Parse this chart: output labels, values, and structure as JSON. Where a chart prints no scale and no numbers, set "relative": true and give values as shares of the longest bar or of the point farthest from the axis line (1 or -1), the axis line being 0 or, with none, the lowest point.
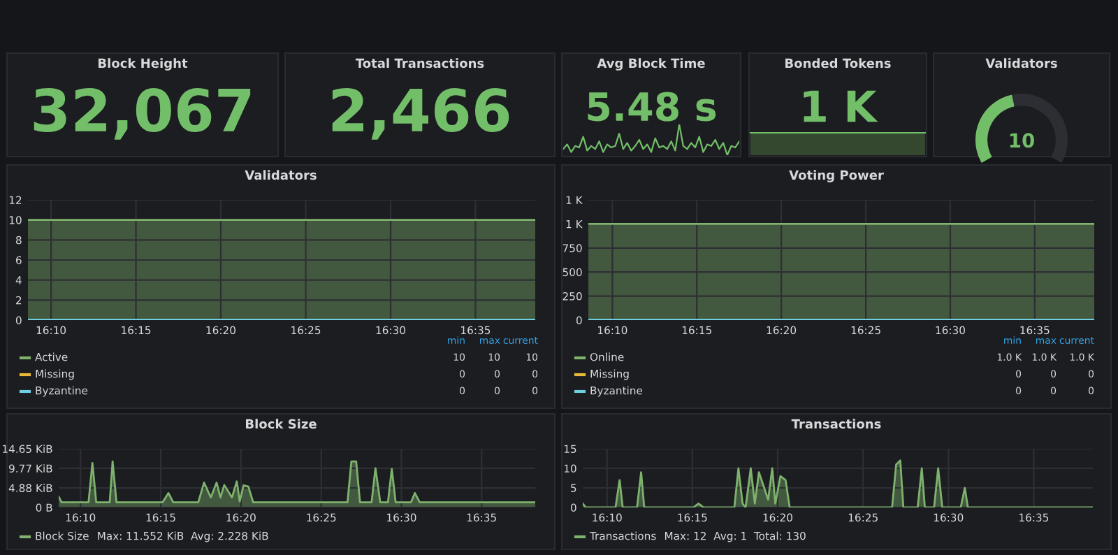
{
  "chart_data": [
    {
      "type": "other",
      "title": "Block Height",
      "annotations": [
        "32,067"
      ]
    },
    {
      "type": "other",
      "title": "Total Transactions",
      "annotations": [
        "2,466"
      ]
    },
    {
      "type": "line",
      "relative": true,
      "title": "Avg Block Time",
      "annotations": [
        "5.48 s"
      ],
      "categories": [
        null,
        null,
        null,
        null,
        null,
        null,
        null,
        null,
        null,
        null,
        null,
        null,
        null,
        null,
        null,
        null,
        null,
        null,
        null,
        null,
        null,
        null,
        null,
        null,
        null,
        null,
        null,
        null,
        null,
        null,
        null,
        null,
        null,
        null,
        null,
        null,
        null,
        null,
        null,
        null,
        null,
        null,
        null,
        null,
        null
      ],
      "series": [
        {
          "color": "#73bf69",
          "values": [
            0.2,
            0.35,
            0.1,
            0.3,
            0.25,
            0.6,
            0.15,
            0.3,
            0.2,
            0.45,
            0.1,
            0.35,
            0.25,
            0.3,
            0.7,
            0.2,
            0.4,
            0.15,
            0.3,
            0.5,
            0.2,
            0.35,
            0.1,
            0.55,
            0.25,
            0.3,
            0.2,
            0.45,
            0.15,
            1.0,
            0.3,
            0.2,
            0.4,
            0.25,
            0.6,
            0.1,
            0.35,
            0.3,
            0.5,
            0.2,
            0.4,
            0.0,
            0.3,
            0.25,
            0.45
          ]
        }
      ]
    },
    {
      "type": "other",
      "title": "Bonded Tokens",
      "annotations": [
        "1 K"
      ]
    },
    {
      "type": "donut",
      "title": "Validators",
      "categories": [
        null,
        null
      ],
      "values": [
        45,
        55
      ],
      "colors": [
        "#73bf69",
        "#2d2e33"
      ],
      "annotations": [
        "10"
      ]
    },
    {
      "type": "area",
      "title": "Validators",
      "xlim": [
        16.144,
        16.642
      ],
      "ylim": [
        0,
        12
      ],
      "grid": true,
      "legend": "bottom",
      "xticks": [
        {
          "value": 16.1667,
          "label": "16:10"
        },
        {
          "value": 16.25,
          "label": "16:15"
        },
        {
          "value": 16.3333,
          "label": "16:20"
        },
        {
          "value": 16.4167,
          "label": "16:25"
        },
        {
          "value": 16.5,
          "label": "16:30"
        },
        {
          "value": 16.5833,
          "label": "16:35"
        }
      ],
      "yticks": [
        0,
        2,
        4,
        6,
        8,
        10,
        12
      ],
      "annotations": [
        "min",
        "max",
        "current",
        "10",
        "10",
        "10",
        "0",
        "0",
        "0",
        "0",
        "0",
        "0"
      ],
      "series": [
        {
          "name": "Active",
          "color": "#7eb26d",
          "x": [
            16.144,
            16.642
          ],
          "values": [
            10,
            10
          ]
        },
        {
          "name": "Missing",
          "type": "line",
          "color": "#eab839"
        },
        {
          "name": "Byzantine",
          "type": "line",
          "color": "#6ed0e0",
          "x": [
            16.144,
            16.642
          ],
          "values": [
            0,
            0
          ]
        }
      ]
    },
    {
      "type": "area",
      "title": "Voting Power",
      "xlim": [
        16.143,
        16.642
      ],
      "ylim": [
        0,
        1250
      ],
      "grid": true,
      "legend": "bottom",
      "xticks": [
        {
          "value": 16.1667,
          "label": "16:10"
        },
        {
          "value": 16.25,
          "label": "16:15"
        },
        {
          "value": 16.3333,
          "label": "16:20"
        },
        {
          "value": 16.4167,
          "label": "16:25"
        },
        {
          "value": 16.5,
          "label": "16:30"
        },
        {
          "value": 16.5833,
          "label": "16:35"
        }
      ],
      "yticks": [
        0,
        250,
        500,
        750,
        {
          "value": 1000,
          "label": "1 K"
        },
        {
          "value": 1250,
          "label": "1 K"
        }
      ],
      "annotations": [
        "min",
        "max",
        "current",
        "1.0 K",
        "1.0 K",
        "1.0 K",
        "0",
        "0",
        "0",
        "0",
        "0",
        "0"
      ],
      "series": [
        {
          "name": "Online",
          "color": "#7eb26d",
          "x": [
            16.143,
            16.642
          ],
          "values": [
            1000,
            1000
          ]
        },
        {
          "name": "Missing",
          "type": "line",
          "color": "#eab839"
        },
        {
          "name": "Byzantine",
          "type": "line",
          "color": "#6ed0e0",
          "x": [
            16.143,
            16.642
          ],
          "values": [
            0,
            0
          ]
        }
      ]
    },
    {
      "type": "area",
      "title": "Block Size",
      "xlim": [
        16.144,
        16.639
      ],
      "ylim": [
        0,
        14.65
      ],
      "grid": true,
      "legend": "bottom",
      "xticks": [
        {
          "value": 16.1667,
          "label": "16:10"
        },
        {
          "value": 16.25,
          "label": "16:15"
        },
        {
          "value": 16.3333,
          "label": "16:20"
        },
        {
          "value": 16.4167,
          "label": "16:25"
        },
        {
          "value": 16.5,
          "label": "16:30"
        },
        {
          "value": 16.5833,
          "label": "16:35"
        }
      ],
      "yticks": [
        {
          "value": 0,
          "label": "0 B"
        },
        {
          "value": 4.88,
          "label": "4.88 KiB"
        },
        {
          "value": 9.77,
          "label": "9.77 KiB"
        },
        {
          "value": 14.65,
          "label": "14.65 KiB"
        }
      ],
      "annotations": [
        "Max: 11.552 KiB  Avg: 2.228 KiB"
      ],
      "series": [
        {
          "name": "Block Size",
          "color": "#7eb26d",
          "x": [
            16.144,
            16.147,
            16.175,
            16.179,
            16.183,
            16.197,
            16.2,
            16.204,
            16.252,
            16.258,
            16.263,
            16.289,
            16.295,
            16.302,
            16.308,
            16.312,
            16.316,
            16.324,
            16.329,
            16.332,
            16.336,
            16.341,
            16.346,
            16.444,
            16.448,
            16.453,
            16.457,
            16.469,
            16.473,
            16.478,
            16.486,
            16.49,
            16.494,
            16.51,
            16.514,
            16.519,
            16.639
          ],
          "values": [
            2.7,
            1.3,
            1.3,
            11.1,
            1.3,
            1.3,
            11.5,
            1.3,
            1.3,
            3.6,
            1.3,
            1.3,
            6.2,
            2.5,
            6.2,
            2.5,
            5.6,
            2.5,
            6.5,
            1.5,
            5.5,
            5.2,
            1.3,
            1.3,
            11.5,
            11.5,
            1.3,
            1.3,
            9.8,
            1.3,
            1.3,
            9.6,
            1.3,
            1.3,
            3.6,
            1.3,
            1.3
          ]
        }
      ]
    },
    {
      "type": "area",
      "title": "Transactions",
      "xlim": [
        16.143,
        16.641
      ],
      "ylim": [
        0,
        15
      ],
      "grid": true,
      "legend": "bottom",
      "xticks": [
        {
          "value": 16.1667,
          "label": "16:10"
        },
        {
          "value": 16.25,
          "label": "16:15"
        },
        {
          "value": 16.3333,
          "label": "16:20"
        },
        {
          "value": 16.4167,
          "label": "16:25"
        },
        {
          "value": 16.5,
          "label": "16:30"
        },
        {
          "value": 16.5833,
          "label": "16:35"
        }
      ],
      "yticks": [
        0,
        5,
        10,
        15
      ],
      "annotations": [
        "Max: 12  Avg: 1  Total: 130"
      ],
      "series": [
        {
          "name": "Transactions",
          "color": "#7eb26d",
          "x": [
            16.143,
            16.146,
            16.175,
            16.179,
            16.182,
            16.196,
            16.2,
            16.203,
            16.251,
            16.256,
            16.261,
            16.291,
            16.295,
            16.299,
            16.302,
            16.307,
            16.311,
            16.315,
            16.324,
            16.328,
            16.331,
            16.336,
            16.341,
            16.345,
            16.445,
            16.449,
            16.453,
            16.456,
            16.47,
            16.474,
            16.477,
            16.486,
            16.49,
            16.494,
            16.512,
            16.516,
            16.519,
            16.641
          ],
          "values": [
            1,
            0,
            0,
            7,
            0,
            0,
            9,
            0,
            0,
            1,
            0,
            0,
            10,
            1,
            0,
            10,
            1,
            9,
            2,
            10,
            1,
            8,
            7,
            0,
            0,
            11,
            12,
            0,
            0,
            10,
            0,
            0,
            10,
            0,
            0,
            5,
            0,
            0
          ]
        }
      ]
    }
  ]
}
